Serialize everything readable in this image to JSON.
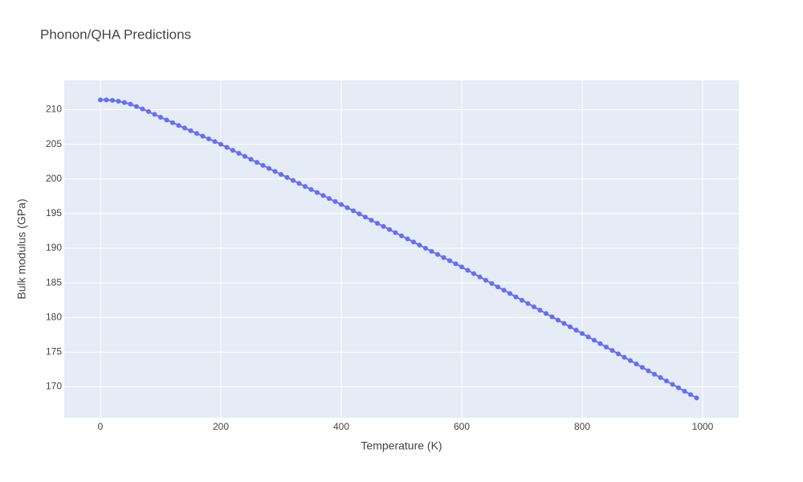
{
  "chart_data": {
    "type": "line",
    "title": "Phonon/QHA Predictions",
    "x_label": "Temperature (K)",
    "y_label": "Bulk modulus (GPa)",
    "x": [
      0,
      10,
      20,
      30,
      40,
      50,
      60,
      70,
      80,
      90,
      100,
      110,
      120,
      130,
      140,
      150,
      160,
      170,
      180,
      190,
      200,
      210,
      220,
      230,
      240,
      250,
      260,
      270,
      280,
      290,
      300,
      310,
      320,
      330,
      340,
      350,
      360,
      370,
      380,
      390,
      400,
      410,
      420,
      430,
      440,
      450,
      460,
      470,
      480,
      490,
      500,
      510,
      520,
      530,
      540,
      550,
      560,
      570,
      580,
      590,
      600,
      610,
      620,
      630,
      640,
      650,
      660,
      670,
      680,
      690,
      700,
      710,
      720,
      730,
      740,
      750,
      760,
      770,
      780,
      790,
      800,
      810,
      820,
      830,
      840,
      850,
      860,
      870,
      880,
      890,
      900,
      910,
      920,
      930,
      940,
      950,
      960,
      970,
      980,
      990
    ],
    "values": [
      211.4,
      211.4,
      211.35,
      211.22,
      211.03,
      210.79,
      210.45,
      210.1,
      209.72,
      209.32,
      208.9,
      208.51,
      208.12,
      207.73,
      207.34,
      206.95,
      206.56,
      206.17,
      205.78,
      205.39,
      205.0,
      204.57,
      204.13,
      203.7,
      203.26,
      202.83,
      202.39,
      201.96,
      201.52,
      201.09,
      200.65,
      200.22,
      199.78,
      199.35,
      198.91,
      198.48,
      198.04,
      197.61,
      197.17,
      196.74,
      196.3,
      195.85,
      195.4,
      194.95,
      194.5,
      194.05,
      193.6,
      193.15,
      192.7,
      192.25,
      191.8,
      191.35,
      190.9,
      190.45,
      190.0,
      189.55,
      189.1,
      188.65,
      188.2,
      187.75,
      187.3,
      186.82,
      186.34,
      185.86,
      185.38,
      184.9,
      184.42,
      183.94,
      183.46,
      182.98,
      182.5,
      182.02,
      181.54,
      181.06,
      180.58,
      180.1,
      179.62,
      179.14,
      178.66,
      178.18,
      177.7,
      177.21,
      176.72,
      176.23,
      175.74,
      175.25,
      174.76,
      174.27,
      173.78,
      173.29,
      172.8,
      172.31,
      171.82,
      171.33,
      170.84,
      170.35,
      169.86,
      169.37,
      168.88,
      168.39
    ],
    "color": "#636efa",
    "xlim": [
      -60,
      1060
    ],
    "xticks": [
      0,
      200,
      400,
      600,
      800,
      1000
    ],
    "ylim": [
      165.54,
      214.23
    ],
    "yticks": [
      170,
      175,
      180,
      185,
      190,
      195,
      200,
      205,
      210
    ],
    "grid": true
  }
}
